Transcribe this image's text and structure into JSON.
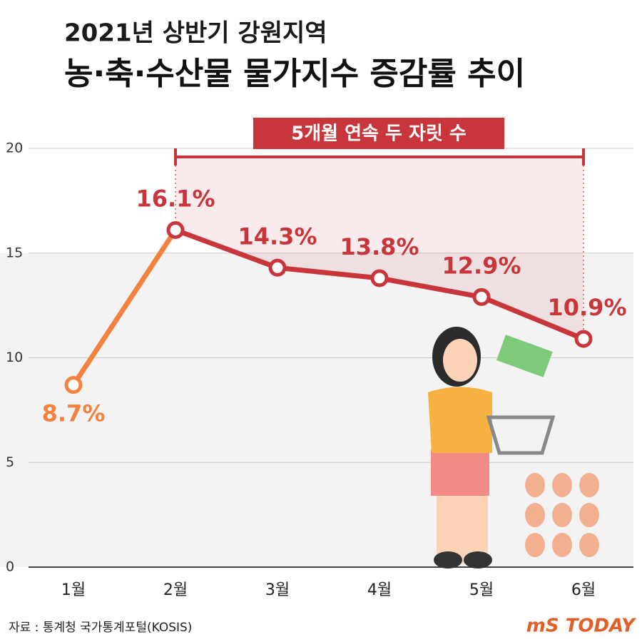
{
  "chart_data": {
    "type": "line",
    "title": "2021년 상반기 강원지역",
    "subtitle": "농·축·수산물 물가지수 증감률 추이",
    "annotation": "5개월 연속 두 자릿 수",
    "source": "자료 : 통계청 국가통계포털(KOSIS)",
    "logo": "mS TODAY",
    "categories": [
      "1월",
      "2월",
      "3월",
      "4월",
      "5월",
      "6월"
    ],
    "series": [
      {
        "color": "#c8353b",
        "point_colors": [
          "#f4823e",
          "#c8353b",
          "#c8353b",
          "#c8353b",
          "#c8353b",
          "#c8353b"
        ],
        "values": [
          8.7,
          16.1,
          14.3,
          13.8,
          12.9,
          10.9
        ],
        "value_labels": [
          "8.7%",
          "16.1%",
          "14.3%",
          "13.8%",
          "12.9%",
          "10.9%"
        ]
      }
    ],
    "ylim": [
      0,
      20
    ],
    "yticks": [
      0,
      5,
      10,
      15,
      20
    ],
    "grid": true
  }
}
